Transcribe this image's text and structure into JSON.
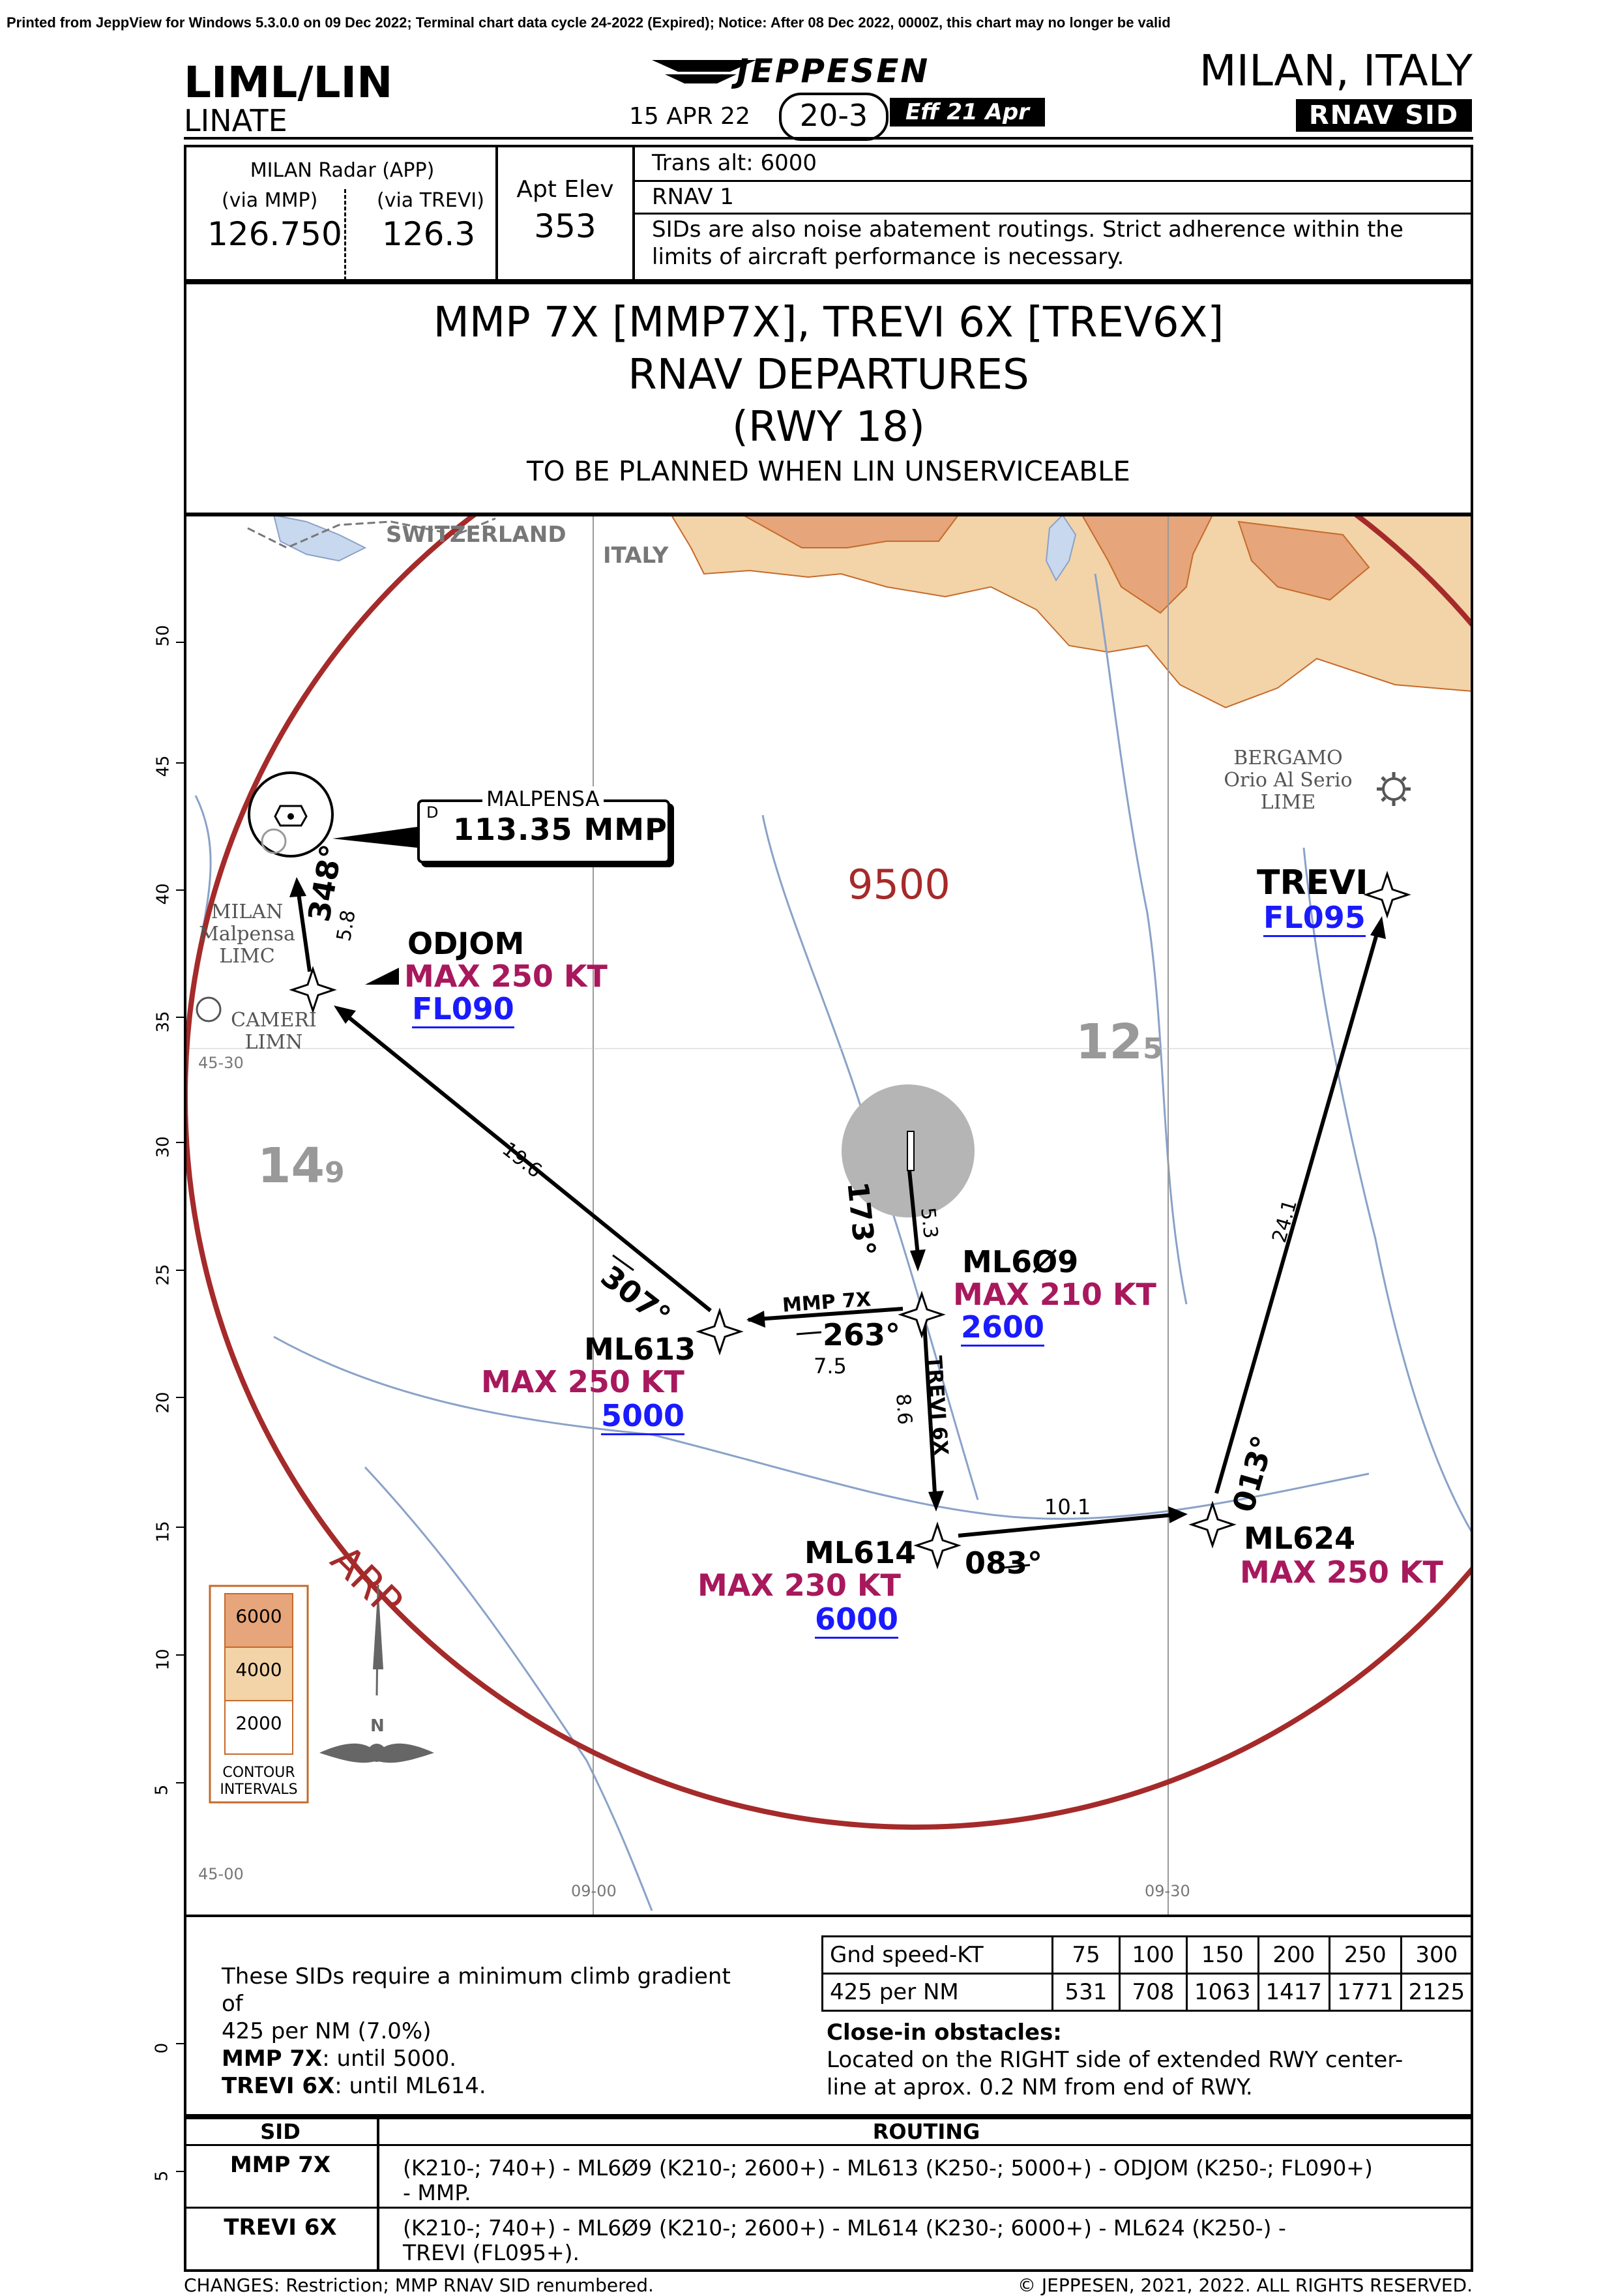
{
  "print_banner": "Printed from JeppView for Windows 5.3.0.0 on 09 Dec 2022; Terminal chart data cycle 24-2022 (Expired); Notice: After 08 Dec 2022, 0000Z, this chart may no longer be valid",
  "header": {
    "icao": "LIML/LIN",
    "airport_name": "LINATE",
    "brand": "JEPPESEN",
    "date": "15 APR 22",
    "chart_number": "20-3",
    "effective": "Eff 21 Apr",
    "city": "MILAN, ITALY",
    "chart_type": "RNAV SID"
  },
  "comms": {
    "service": "MILAN Radar (APP)",
    "via_mmp_label": "(via MMP)",
    "via_mmp_freq": "126.750",
    "via_trevi_label": "(via TREVI)",
    "via_trevi_freq": "126.3",
    "apt_elev_label": "Apt Elev",
    "apt_elev": "353",
    "trans_alt": "Trans alt: 6000",
    "rnav": "RNAV 1",
    "note_line1": "SIDs are also noise abatement routings. Strict adherence within the",
    "note_line2": "limits of aircraft performance is necessary."
  },
  "title": {
    "line1": "MMP 7X [MMP7X], TREVI 6X [TREV6X]",
    "line2": "RNAV DEPARTURES",
    "line3": "(RWY 18)",
    "line4": "TO BE PLANNED WHEN LIN UNSERVICEABLE"
  },
  "map": {
    "region_switzerland": "SWITZERLAND",
    "region_italy": "ITALY",
    "msa_altitude": "9500",
    "arp_label": "ARP",
    "grid_12": "12",
    "grid_12_sub": "5",
    "grid_14": "14",
    "grid_14_sub": "9",
    "bergamo_line1": "BERGAMO",
    "bergamo_line2": "Orio Al Serio",
    "bergamo_line3": "LIME",
    "malpensa_ap_line1": "MILAN",
    "malpensa_ap_line2": "Malpensa",
    "malpensa_ap_line3": "LIMC",
    "cameri_line1": "CAMERI",
    "cameri_line2": "LIMN",
    "vor_name": "MALPENSA",
    "vor_d": "D",
    "vor_freq": "113.35 MMP",
    "lat_left_upper": "45-30",
    "lat_left_lower": "45-00",
    "lon_0900": "09-00",
    "lon_0930": "09-30",
    "ruler_marks": [
      "50",
      "45",
      "40",
      "35",
      "30",
      "25",
      "20",
      "15",
      "10",
      "5",
      "0",
      "5"
    ],
    "contours": {
      "values": [
        "6000",
        "4000",
        "2000"
      ],
      "colors": [
        "#e6a57a",
        "#f3d3a8",
        "#ffffff"
      ],
      "label_line1": "CONTOUR",
      "label_line2": "INTERVALS"
    },
    "north_label": "N",
    "waypoints": {
      "odjom": {
        "name": "ODJOM",
        "speed": "MAX 250 KT",
        "alt": "FL090"
      },
      "ml609": {
        "name": "ML6Ø9",
        "speed": "MAX 210 KT",
        "alt": "2600"
      },
      "ml613": {
        "name": "ML613",
        "speed": "MAX 250 KT",
        "alt": "5000"
      },
      "ml614": {
        "name": "ML614",
        "speed": "MAX 230 KT",
        "alt": "6000"
      },
      "ml624": {
        "name": "ML624",
        "speed": "MAX 250 KT"
      },
      "trevi": {
        "name": "TREVI",
        "alt": "FL095"
      }
    },
    "legs": {
      "rwy_track": "173°",
      "rwy_dist": "5.3",
      "mmp_label": "MMP 7X",
      "l263": "263°",
      "l263_dist": "7.5",
      "l307": "307°",
      "l307_dist": "19.6",
      "l348": "348°",
      "l348_dist": "5.8",
      "trevi_label": "TREVI 6X",
      "trevi_dist": "8.6",
      "l083": "083°",
      "l083_dist": "10.1",
      "l013": "013°",
      "l013_dist": "24.1"
    },
    "colors": {
      "msa_ring": "#a52a2a",
      "speed": "#a8185c",
      "altitude": "#1a1aff",
      "terrain_high": "#e6a57a",
      "terrain_mid": "#f3d3a8",
      "water": "#c8d8ee"
    }
  },
  "climb": {
    "line1": "These SIDs require a minimum climb gradient",
    "line2": "of",
    "line3": "425 per NM (7.0%)",
    "mmp_bold": "MMP 7X",
    "mmp_rest": ": until 5000.",
    "trevi_bold": "TREVI 6X",
    "trevi_rest": ": until ML614."
  },
  "ground_speed": {
    "header": [
      "Gnd speed-KT",
      "75",
      "100",
      "150",
      "200",
      "250",
      "300"
    ],
    "row": [
      "425 per NM",
      "531",
      "708",
      "1063",
      "1417",
      "1771",
      "2125"
    ]
  },
  "obstacles": {
    "title": "Close-in obstacles:",
    "line1": "Located on the RIGHT side of extended RWY center-",
    "line2": "line at aprox. 0.2 NM from end of RWY."
  },
  "routing": {
    "col_sid": "SID",
    "col_routing": "ROUTING",
    "rows": [
      {
        "sid": "MMP 7X",
        "line1": "(K210-; 740+) - ML6Ø9 (K210-; 2600+) - ML613 (K250-; 5000+) - ODJOM (K250-; FL090+)",
        "line2": "- MMP."
      },
      {
        "sid": "TREVI 6X",
        "line1": "(K210-; 740+) - ML6Ø9 (K210-; 2600+) - ML614 (K230-; 6000+) - ML624 (K250-) -",
        "line2": "TREVI (FL095+)."
      }
    ]
  },
  "footer": {
    "changes": "CHANGES:  Restriction; MMP RNAV SID renumbered.",
    "copyright": "© JEPPESEN, 2021, 2022. ALL RIGHTS RESERVED."
  }
}
